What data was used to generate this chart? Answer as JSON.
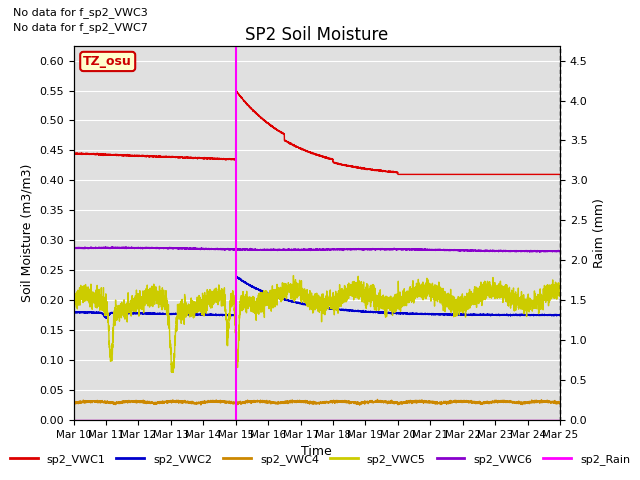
{
  "title": "SP2 Soil Moisture",
  "ylabel_left": "Soil Moisture (m3/m3)",
  "ylabel_right": "Raim (mm)",
  "xlabel": "Time",
  "no_data_text": [
    "No data for f_sp2_VWC3",
    "No data for f_sp2_VWC7"
  ],
  "tz_label": "TZ_osu",
  "ylim_left": [
    0.0,
    0.625
  ],
  "ylim_right": [
    0.0,
    4.6875
  ],
  "yticks_left": [
    0.0,
    0.05,
    0.1,
    0.15,
    0.2,
    0.25,
    0.3,
    0.35,
    0.4,
    0.45,
    0.5,
    0.55,
    0.6
  ],
  "yticks_right": [
    0.0,
    0.5,
    1.0,
    1.5,
    2.0,
    2.5,
    3.0,
    3.5,
    4.0,
    4.5
  ],
  "xtick_labels": [
    "Mar 10",
    "Mar 11",
    "Mar 12",
    "Mar 13",
    "Mar 14",
    "Mar 15",
    "Mar 16",
    "Mar 17",
    "Mar 18",
    "Mar 19",
    "Mar 20",
    "Mar 21",
    "Mar 22",
    "Mar 23",
    "Mar 24",
    "Mar 25"
  ],
  "colors": {
    "sp2_VWC1": "#dd0000",
    "sp2_VWC2": "#0000cc",
    "sp2_VWC4": "#cc8800",
    "sp2_VWC5": "#cccc00",
    "sp2_VWC6": "#8800cc",
    "sp2_Rain": "#ff00ff"
  },
  "background_color": "#e0e0e0",
  "grid_color": "#ffffff",
  "fig_facecolor": "#ffffff"
}
